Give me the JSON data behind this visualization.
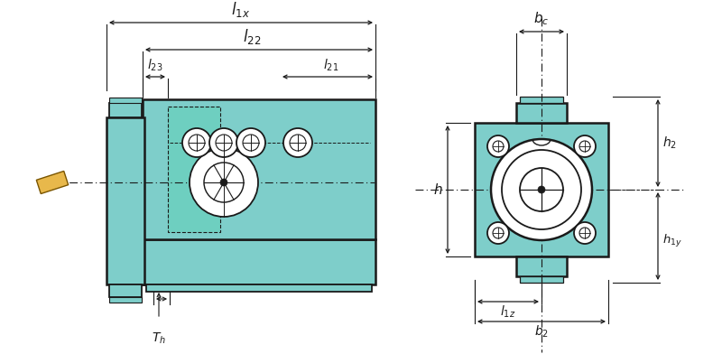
{
  "bg_color": "#ffffff",
  "teal": "#7ececa",
  "dark": "#1a1a1a",
  "yellow": "#e8b84b",
  "fig_width": 8.0,
  "fig_height": 3.92,
  "labels": {
    "l1x": "$l_{1x}$",
    "l22": "$l_{22}$",
    "l23": "$l_{23}$",
    "l21": "$l_{21}$",
    "bc": "$b_c$",
    "h": "$h$",
    "h2": "$h_2$",
    "h1y": "$h_{1y}$",
    "l1z": "$l_{1z}$",
    "b2": "$b_2$",
    "Th": "$T_h$"
  }
}
